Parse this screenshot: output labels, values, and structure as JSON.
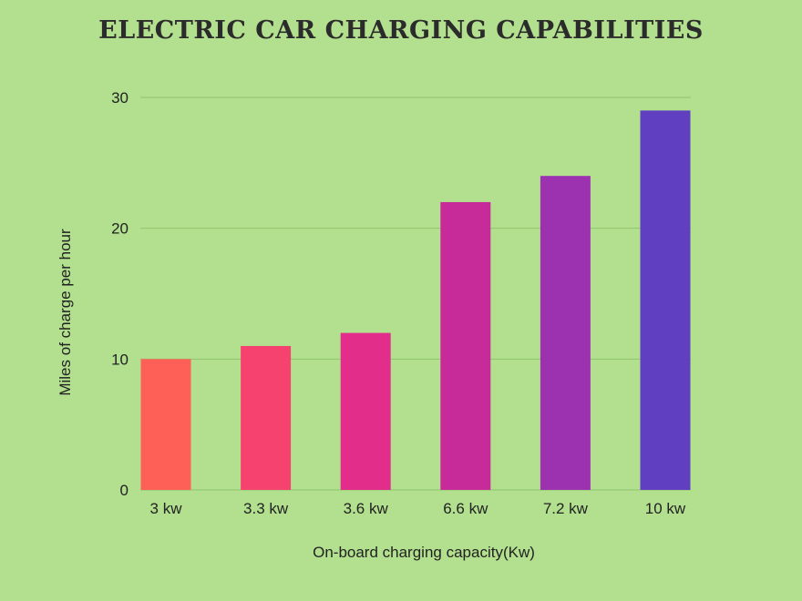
{
  "chart_data": {
    "type": "bar",
    "title": "ELECTRIC CAR CHARGING CAPABILITIES",
    "xlabel": "On-board charging capacity(Kw)",
    "ylabel": "Miles of charge per hour",
    "categories": [
      "3 kw",
      "3.3 kw",
      "3.6 kw",
      "6.6 kw",
      "7.2 kw",
      "10 kw"
    ],
    "values": [
      10,
      11,
      12,
      22,
      24,
      29
    ],
    "bar_colors": [
      "#fe5f57",
      "#f6426f",
      "#e32d8a",
      "#c72b9a",
      "#9d32b1",
      "#613fc1"
    ],
    "ylim": [
      0,
      30
    ],
    "yticks": [
      "0",
      "10",
      "20",
      "30"
    ],
    "grid": true,
    "legend": "none",
    "background_color": "#b2e08f",
    "grid_color": "#8fc56c"
  }
}
